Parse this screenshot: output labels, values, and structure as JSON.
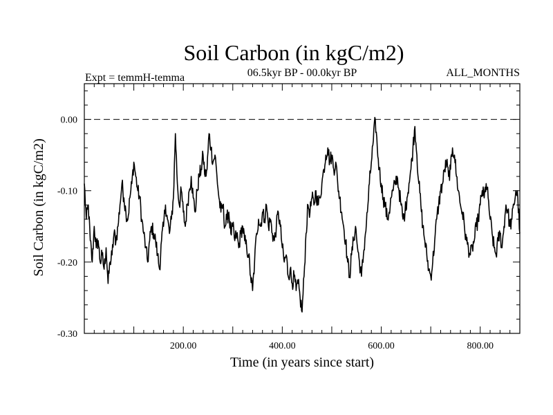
{
  "chart_data": {
    "type": "line",
    "title": "Soil Carbon (in kgC/m2)",
    "subtitle_left": "Expt = temmH-temma",
    "subtitle_center": "06.5kyr BP - 00.0kyr BP",
    "subtitle_right": "ALL_MONTHS",
    "xlabel": "Time (in years since start)",
    "ylabel": "Soil Carbon (in kgC/m2)",
    "xlim": [
      0,
      880
    ],
    "ylim": [
      -0.3,
      0.05
    ],
    "x_ticks": [
      200,
      400,
      600,
      800
    ],
    "x_tick_labels": [
      "200.00",
      "400.00",
      "600.00",
      "800.00"
    ],
    "y_ticks": [
      0.0,
      -0.1,
      -0.2,
      -0.3
    ],
    "y_tick_labels": [
      "0.00",
      "-0.10",
      "-0.20",
      "-0.30"
    ],
    "reference_line": {
      "y": 0.0,
      "style": "dashed"
    },
    "series": [
      {
        "name": "Soil Carbon",
        "color": "#000000",
        "points": [
          [
            0,
            -0.09
          ],
          [
            4,
            -0.14
          ],
          [
            8,
            -0.12
          ],
          [
            12,
            -0.17
          ],
          [
            16,
            -0.2
          ],
          [
            20,
            -0.15
          ],
          [
            24,
            -0.18
          ],
          [
            28,
            -0.17
          ],
          [
            32,
            -0.2
          ],
          [
            36,
            -0.19
          ],
          [
            40,
            -0.21
          ],
          [
            44,
            -0.18
          ],
          [
            48,
            -0.23
          ],
          [
            52,
            -0.2
          ],
          [
            56,
            -0.19
          ],
          [
            60,
            -0.16
          ],
          [
            64,
            -0.17
          ],
          [
            68,
            -0.15
          ],
          [
            72,
            -0.12
          ],
          [
            76,
            -0.09
          ],
          [
            80,
            -0.11
          ],
          [
            84,
            -0.13
          ],
          [
            88,
            -0.14
          ],
          [
            92,
            -0.11
          ],
          [
            96,
            -0.09
          ],
          [
            100,
            -0.06
          ],
          [
            104,
            -0.08
          ],
          [
            108,
            -0.1
          ],
          [
            112,
            -0.11
          ],
          [
            116,
            -0.14
          ],
          [
            120,
            -0.16
          ],
          [
            124,
            -0.18
          ],
          [
            128,
            -0.2
          ],
          [
            132,
            -0.17
          ],
          [
            136,
            -0.15
          ],
          [
            140,
            -0.16
          ],
          [
            144,
            -0.17
          ],
          [
            148,
            -0.19
          ],
          [
            152,
            -0.21
          ],
          [
            156,
            -0.17
          ],
          [
            160,
            -0.15
          ],
          [
            164,
            -0.12
          ],
          [
            168,
            -0.14
          ],
          [
            172,
            -0.16
          ],
          [
            176,
            -0.14
          ],
          [
            180,
            -0.11
          ],
          [
            184,
            -0.02
          ],
          [
            188,
            -0.09
          ],
          [
            192,
            -0.12
          ],
          [
            196,
            -0.1
          ],
          [
            200,
            -0.13
          ],
          [
            204,
            -0.15
          ],
          [
            208,
            -0.12
          ],
          [
            212,
            -0.1
          ],
          [
            216,
            -0.08
          ],
          [
            220,
            -0.11
          ],
          [
            224,
            -0.13
          ],
          [
            228,
            -0.1
          ],
          [
            232,
            -0.08
          ],
          [
            236,
            -0.07
          ],
          [
            240,
            -0.05
          ],
          [
            244,
            -0.08
          ],
          [
            248,
            -0.07
          ],
          [
            252,
            -0.02
          ],
          [
            256,
            -0.04
          ],
          [
            260,
            -0.06
          ],
          [
            264,
            -0.05
          ],
          [
            268,
            -0.08
          ],
          [
            272,
            -0.11
          ],
          [
            276,
            -0.13
          ],
          [
            280,
            -0.12
          ],
          [
            284,
            -0.15
          ],
          [
            288,
            -0.14
          ],
          [
            292,
            -0.13
          ],
          [
            296,
            -0.16
          ],
          [
            300,
            -0.15
          ],
          [
            304,
            -0.17
          ],
          [
            308,
            -0.16
          ],
          [
            312,
            -0.18
          ],
          [
            316,
            -0.16
          ],
          [
            320,
            -0.15
          ],
          [
            324,
            -0.17
          ],
          [
            328,
            -0.18
          ],
          [
            332,
            -0.19
          ],
          [
            336,
            -0.22
          ],
          [
            340,
            -0.24
          ],
          [
            344,
            -0.2
          ],
          [
            348,
            -0.16
          ],
          [
            352,
            -0.14
          ],
          [
            356,
            -0.15
          ],
          [
            360,
            -0.13
          ],
          [
            364,
            -0.14
          ],
          [
            368,
            -0.12
          ],
          [
            372,
            -0.15
          ],
          [
            376,
            -0.14
          ],
          [
            380,
            -0.16
          ],
          [
            384,
            -0.17
          ],
          [
            388,
            -0.15
          ],
          [
            392,
            -0.13
          ],
          [
            396,
            -0.15
          ],
          [
            400,
            -0.18
          ],
          [
            404,
            -0.2
          ],
          [
            408,
            -0.19
          ],
          [
            412,
            -0.22
          ],
          [
            416,
            -0.21
          ],
          [
            420,
            -0.23
          ],
          [
            424,
            -0.22
          ],
          [
            428,
            -0.24
          ],
          [
            432,
            -0.23
          ],
          [
            436,
            -0.25
          ],
          [
            440,
            -0.27
          ],
          [
            444,
            -0.22
          ],
          [
            448,
            -0.16
          ],
          [
            452,
            -0.12
          ],
          [
            456,
            -0.13
          ],
          [
            460,
            -0.11
          ],
          [
            464,
            -0.12
          ],
          [
            468,
            -0.1
          ],
          [
            472,
            -0.12
          ],
          [
            476,
            -0.11
          ],
          [
            480,
            -0.09
          ],
          [
            484,
            -0.07
          ],
          [
            488,
            -0.05
          ],
          [
            492,
            -0.04
          ],
          [
            496,
            -0.06
          ],
          [
            500,
            -0.05
          ],
          [
            504,
            -0.07
          ],
          [
            508,
            -0.06
          ],
          [
            512,
            -0.09
          ],
          [
            516,
            -0.11
          ],
          [
            520,
            -0.13
          ],
          [
            524,
            -0.15
          ],
          [
            528,
            -0.17
          ],
          [
            532,
            -0.2
          ],
          [
            536,
            -0.22
          ],
          [
            540,
            -0.19
          ],
          [
            544,
            -0.17
          ],
          [
            548,
            -0.15
          ],
          [
            552,
            -0.18
          ],
          [
            556,
            -0.2
          ],
          [
            560,
            -0.22
          ],
          [
            564,
            -0.19
          ],
          [
            568,
            -0.16
          ],
          [
            572,
            -0.13
          ],
          [
            576,
            -0.09
          ],
          [
            580,
            -0.06
          ],
          [
            584,
            -0.03
          ],
          [
            588,
            0.0
          ],
          [
            592,
            -0.04
          ],
          [
            596,
            -0.07
          ],
          [
            600,
            -0.09
          ],
          [
            604,
            -0.11
          ],
          [
            608,
            -0.12
          ],
          [
            612,
            -0.14
          ],
          [
            616,
            -0.13
          ],
          [
            620,
            -0.11
          ],
          [
            624,
            -0.1
          ],
          [
            628,
            -0.09
          ],
          [
            632,
            -0.08
          ],
          [
            636,
            -0.1
          ],
          [
            640,
            -0.12
          ],
          [
            644,
            -0.14
          ],
          [
            648,
            -0.13
          ],
          [
            652,
            -0.11
          ],
          [
            656,
            -0.09
          ],
          [
            660,
            -0.07
          ],
          [
            664,
            -0.04
          ],
          [
            668,
            -0.01
          ],
          [
            672,
            -0.05
          ],
          [
            676,
            -0.09
          ],
          [
            680,
            -0.12
          ],
          [
            684,
            -0.15
          ],
          [
            688,
            -0.17
          ],
          [
            692,
            -0.19
          ],
          [
            696,
            -0.21
          ],
          [
            700,
            -0.22
          ],
          [
            704,
            -0.2
          ],
          [
            708,
            -0.17
          ],
          [
            712,
            -0.14
          ],
          [
            716,
            -0.12
          ],
          [
            720,
            -0.1
          ],
          [
            724,
            -0.09
          ],
          [
            728,
            -0.07
          ],
          [
            732,
            -0.06
          ],
          [
            736,
            -0.08
          ],
          [
            740,
            -0.07
          ],
          [
            744,
            -0.04
          ],
          [
            748,
            -0.05
          ],
          [
            752,
            -0.08
          ],
          [
            756,
            -0.1
          ],
          [
            760,
            -0.12
          ],
          [
            764,
            -0.13
          ],
          [
            768,
            -0.15
          ],
          [
            772,
            -0.17
          ],
          [
            776,
            -0.18
          ],
          [
            780,
            -0.19
          ],
          [
            784,
            -0.18
          ],
          [
            788,
            -0.17
          ],
          [
            792,
            -0.15
          ],
          [
            796,
            -0.14
          ],
          [
            800,
            -0.12
          ],
          [
            804,
            -0.1
          ],
          [
            808,
            -0.11
          ],
          [
            812,
            -0.09
          ],
          [
            816,
            -0.11
          ],
          [
            820,
            -0.14
          ],
          [
            824,
            -0.16
          ],
          [
            828,
            -0.18
          ],
          [
            832,
            -0.19
          ],
          [
            836,
            -0.17
          ],
          [
            840,
            -0.16
          ],
          [
            844,
            -0.18
          ],
          [
            848,
            -0.15
          ],
          [
            852,
            -0.12
          ],
          [
            856,
            -0.13
          ],
          [
            860,
            -0.15
          ],
          [
            864,
            -0.14
          ],
          [
            868,
            -0.12
          ],
          [
            872,
            -0.1
          ],
          [
            876,
            -0.11
          ],
          [
            880,
            -0.16
          ]
        ]
      }
    ]
  }
}
